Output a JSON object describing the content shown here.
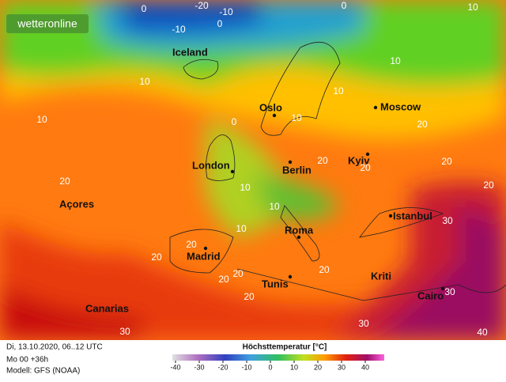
{
  "logo": "wetteronline",
  "places": [
    "Iceland",
    "Oslo",
    "Moscow",
    "London",
    "Berlin",
    "Kyiv",
    "Açores",
    "Istanbul",
    "Madrid",
    "Roma",
    "Tunis",
    "Kriti",
    "Cairo",
    "Canarias"
  ],
  "isotherm_labels": [
    0,
    -20,
    -10,
    -10,
    0,
    0,
    10,
    10,
    10,
    10,
    10,
    0,
    10,
    20,
    20,
    20,
    20,
    20,
    10,
    10,
    20,
    10,
    20,
    20,
    20,
    30,
    20,
    20,
    30,
    30,
    30,
    40,
    20
  ],
  "footer": {
    "date": "Di, 13.10.2020, 06..12 UTC",
    "run": "Mo 00 +36h",
    "model": "Modell: GFS (NOAA)"
  },
  "legend": {
    "title": "Höchsttemperatur [°C]",
    "ticks": [
      -40,
      -30,
      -20,
      -10,
      0,
      10,
      20,
      30,
      40
    ]
  }
}
